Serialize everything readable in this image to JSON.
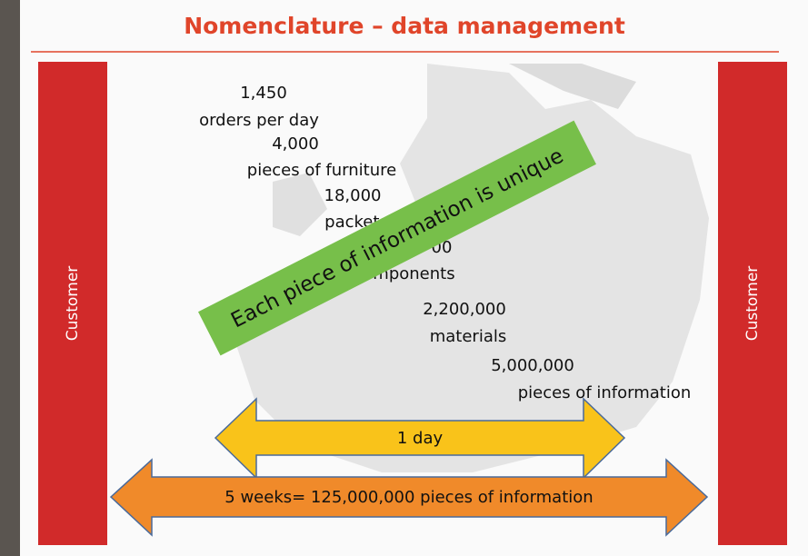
{
  "header": {
    "title": "Nomenclature – data management"
  },
  "sides": {
    "left": "Customer",
    "right": "Customer"
  },
  "stats": [
    "1,450",
    "orders per day",
    "4,000",
    "pieces of furniture",
    "18,000",
    "packets",
    "00",
    "components",
    "2,200,000",
    "materials",
    "5,000,000",
    "pieces of information"
  ],
  "banner": "Each piece of information is unique",
  "arrows": {
    "short": "1 day",
    "long": "5 weeks= 125,000,000 pieces of information"
  }
}
